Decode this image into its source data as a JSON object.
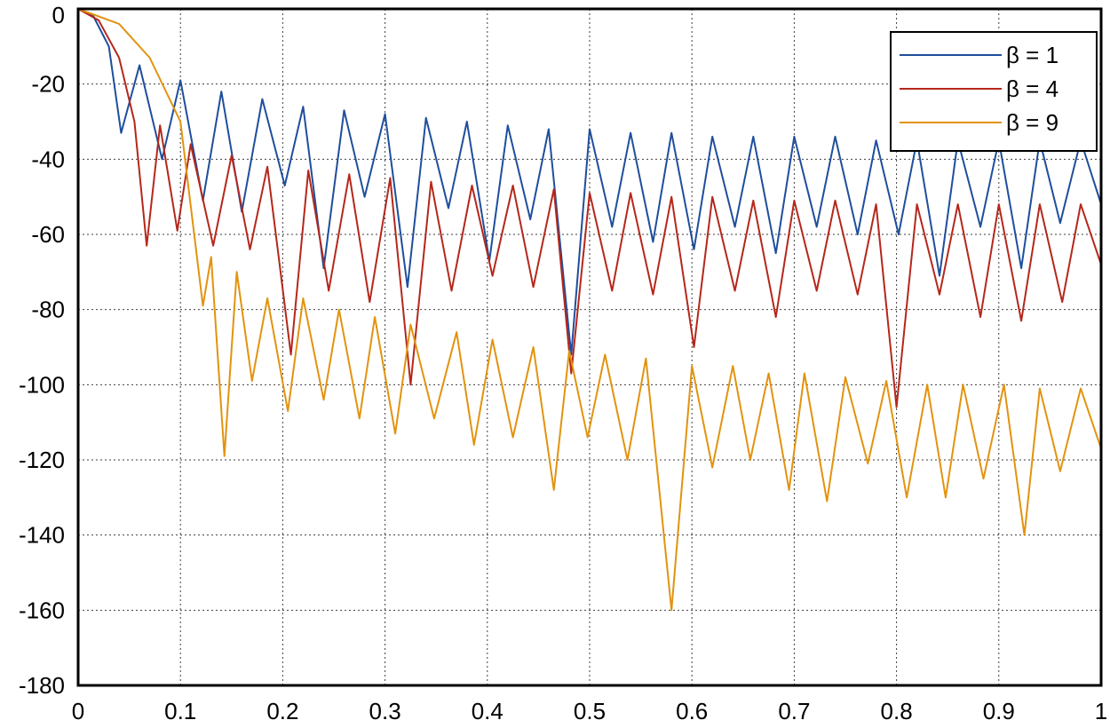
{
  "chart_data": {
    "type": "line",
    "title": "",
    "xlabel": "",
    "ylabel": "",
    "xlim": [
      0,
      1
    ],
    "ylim": [
      -180,
      0
    ],
    "grid": true,
    "legend_position": "top-right",
    "x_ticks": [
      "0",
      "0.1",
      "0.2",
      "0.3",
      "0.4",
      "0.5",
      "0.6",
      "0.7",
      "0.8",
      "0.9",
      "1"
    ],
    "y_ticks": [
      "0",
      "-20",
      "-40",
      "-60",
      "-80",
      "-100",
      "-120",
      "-140",
      "-160",
      "-180"
    ],
    "series": [
      {
        "name": "β = 1",
        "color": "#1f4e9c",
        "beta": 1,
        "points": [
          [
            0,
            0
          ],
          [
            0.015,
            -2
          ],
          [
            0.03,
            -10
          ],
          [
            0.042,
            -33
          ],
          [
            0.06,
            -15
          ],
          [
            0.082,
            -40
          ],
          [
            0.1,
            -19
          ],
          [
            0.122,
            -51
          ],
          [
            0.14,
            -22
          ],
          [
            0.16,
            -54
          ],
          [
            0.18,
            -24
          ],
          [
            0.202,
            -47
          ],
          [
            0.22,
            -26
          ],
          [
            0.24,
            -69
          ],
          [
            0.26,
            -27
          ],
          [
            0.28,
            -50
          ],
          [
            0.3,
            -28
          ],
          [
            0.322,
            -74
          ],
          [
            0.34,
            -29
          ],
          [
            0.362,
            -53
          ],
          [
            0.38,
            -30
          ],
          [
            0.402,
            -67
          ],
          [
            0.42,
            -31
          ],
          [
            0.442,
            -56
          ],
          [
            0.46,
            -32
          ],
          [
            0.482,
            -92
          ],
          [
            0.5,
            -32
          ],
          [
            0.522,
            -58
          ],
          [
            0.54,
            -33
          ],
          [
            0.562,
            -62
          ],
          [
            0.58,
            -33
          ],
          [
            0.602,
            -64
          ],
          [
            0.62,
            -34
          ],
          [
            0.642,
            -58
          ],
          [
            0.66,
            -34
          ],
          [
            0.682,
            -65
          ],
          [
            0.7,
            -34
          ],
          [
            0.722,
            -58
          ],
          [
            0.74,
            -34
          ],
          [
            0.762,
            -60
          ],
          [
            0.78,
            -35
          ],
          [
            0.802,
            -60
          ],
          [
            0.82,
            -35
          ],
          [
            0.842,
            -71
          ],
          [
            0.86,
            -35
          ],
          [
            0.882,
            -58
          ],
          [
            0.9,
            -35
          ],
          [
            0.922,
            -69
          ],
          [
            0.94,
            -35
          ],
          [
            0.96,
            -57
          ],
          [
            0.98,
            -35
          ],
          [
            1.0,
            -52
          ]
        ]
      },
      {
        "name": "β = 4",
        "color": "#b5271b",
        "beta": 4,
        "points": [
          [
            0,
            0
          ],
          [
            0.02,
            -3
          ],
          [
            0.04,
            -13
          ],
          [
            0.055,
            -30
          ],
          [
            0.067,
            -63
          ],
          [
            0.08,
            -31
          ],
          [
            0.097,
            -59
          ],
          [
            0.11,
            -36
          ],
          [
            0.132,
            -63
          ],
          [
            0.15,
            -39
          ],
          [
            0.168,
            -64
          ],
          [
            0.185,
            -42
          ],
          [
            0.208,
            -92
          ],
          [
            0.225,
            -43
          ],
          [
            0.245,
            -75
          ],
          [
            0.265,
            -44
          ],
          [
            0.285,
            -78
          ],
          [
            0.305,
            -45
          ],
          [
            0.325,
            -100
          ],
          [
            0.345,
            -46
          ],
          [
            0.365,
            -75
          ],
          [
            0.385,
            -47
          ],
          [
            0.405,
            -71
          ],
          [
            0.425,
            -47
          ],
          [
            0.445,
            -74
          ],
          [
            0.465,
            -48
          ],
          [
            0.482,
            -97
          ],
          [
            0.5,
            -49
          ],
          [
            0.522,
            -75
          ],
          [
            0.54,
            -49
          ],
          [
            0.562,
            -76
          ],
          [
            0.58,
            -50
          ],
          [
            0.602,
            -90
          ],
          [
            0.62,
            -50
          ],
          [
            0.642,
            -75
          ],
          [
            0.66,
            -51
          ],
          [
            0.682,
            -82
          ],
          [
            0.7,
            -51
          ],
          [
            0.722,
            -75
          ],
          [
            0.74,
            -51
          ],
          [
            0.762,
            -76
          ],
          [
            0.78,
            -52
          ],
          [
            0.8,
            -106
          ],
          [
            0.82,
            -52
          ],
          [
            0.842,
            -76
          ],
          [
            0.86,
            -52
          ],
          [
            0.882,
            -82
          ],
          [
            0.9,
            -52
          ],
          [
            0.922,
            -83
          ],
          [
            0.94,
            -52
          ],
          [
            0.962,
            -78
          ],
          [
            0.98,
            -52
          ],
          [
            1.0,
            -68
          ]
        ]
      },
      {
        "name": "β = 9",
        "color": "#e2930f",
        "beta": 9,
        "points": [
          [
            0,
            0
          ],
          [
            0.04,
            -4
          ],
          [
            0.07,
            -13
          ],
          [
            0.1,
            -30
          ],
          [
            0.122,
            -79
          ],
          [
            0.13,
            -66
          ],
          [
            0.143,
            -119
          ],
          [
            0.155,
            -70
          ],
          [
            0.17,
            -99
          ],
          [
            0.185,
            -77
          ],
          [
            0.205,
            -107
          ],
          [
            0.22,
            -77
          ],
          [
            0.24,
            -104
          ],
          [
            0.255,
            -80
          ],
          [
            0.275,
            -109
          ],
          [
            0.29,
            -82
          ],
          [
            0.31,
            -113
          ],
          [
            0.325,
            -84
          ],
          [
            0.348,
            -109
          ],
          [
            0.37,
            -86
          ],
          [
            0.387,
            -116
          ],
          [
            0.405,
            -88
          ],
          [
            0.425,
            -114
          ],
          [
            0.445,
            -90
          ],
          [
            0.465,
            -128
          ],
          [
            0.48,
            -91
          ],
          [
            0.498,
            -114
          ],
          [
            0.515,
            -92
          ],
          [
            0.537,
            -120
          ],
          [
            0.555,
            -93
          ],
          [
            0.58,
            -160
          ],
          [
            0.6,
            -95
          ],
          [
            0.62,
            -122
          ],
          [
            0.64,
            -95
          ],
          [
            0.657,
            -120
          ],
          [
            0.675,
            -97
          ],
          [
            0.695,
            -128
          ],
          [
            0.71,
            -97
          ],
          [
            0.732,
            -131
          ],
          [
            0.75,
            -98
          ],
          [
            0.772,
            -121
          ],
          [
            0.79,
            -99
          ],
          [
            0.81,
            -130
          ],
          [
            0.83,
            -100
          ],
          [
            0.848,
            -130
          ],
          [
            0.865,
            -100
          ],
          [
            0.885,
            -125
          ],
          [
            0.905,
            -100
          ],
          [
            0.925,
            -140
          ],
          [
            0.94,
            -101
          ],
          [
            0.96,
            -123
          ],
          [
            0.98,
            -101
          ],
          [
            1.0,
            -117
          ]
        ]
      }
    ]
  }
}
